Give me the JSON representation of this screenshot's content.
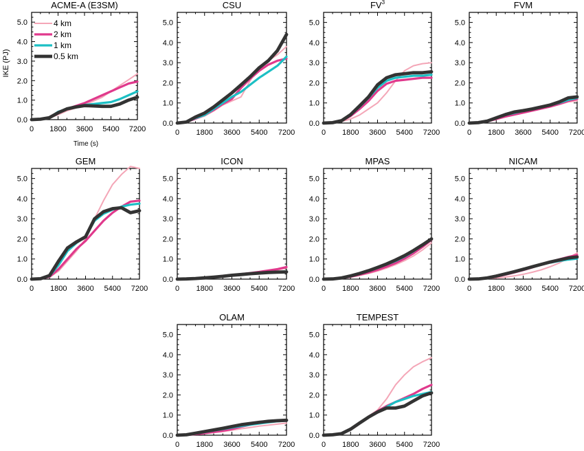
{
  "figure": {
    "ylabel": "IKE (PJ)",
    "xlabel": "Time (s)",
    "legend": {
      "placement": "top-left of first panel",
      "entries": [
        {
          "label": "4 km",
          "color": "#f4a6b7",
          "width": "thin"
        },
        {
          "label": "2 km",
          "color": "#e0398c",
          "width": "medium"
        },
        {
          "label": "1 km",
          "color": "#1cbfc4",
          "width": "medium"
        },
        {
          "label": "0.5 km",
          "color": "#333333",
          "width": "thick"
        }
      ]
    }
  },
  "chart_data": [
    {
      "type": "line",
      "title": "ACME-A (E3SM)",
      "title_sup": "",
      "xlim": [
        0,
        7200
      ],
      "ylim": [
        0,
        5.5
      ],
      "xticks": [
        "0",
        "1800",
        "3600",
        "5400",
        "7200"
      ],
      "yticks": [
        "0.0",
        "1.0",
        "2.0",
        "3.0",
        "4.0",
        "5.0"
      ],
      "xlabel": "Time (s)",
      "ylabel": "IKE (PJ)",
      "x": [
        0,
        600,
        1200,
        1800,
        2400,
        3000,
        3600,
        4200,
        4800,
        5400,
        6000,
        6600,
        7200
      ],
      "series": [
        {
          "name": "4 km",
          "values": [
            0,
            0.02,
            0.08,
            0.25,
            0.45,
            0.6,
            0.75,
            0.95,
            1.15,
            1.45,
            1.75,
            2.05,
            2.35
          ]
        },
        {
          "name": "2 km",
          "values": [
            0,
            0.02,
            0.1,
            0.35,
            0.55,
            0.7,
            0.85,
            1.05,
            1.25,
            1.45,
            1.65,
            1.85,
            1.95
          ]
        },
        {
          "name": "1 km",
          "values": [
            0,
            0.02,
            0.1,
            0.4,
            0.55,
            0.65,
            0.75,
            0.8,
            0.85,
            0.9,
            1.05,
            1.25,
            1.45
          ]
        },
        {
          "name": "0.5 km",
          "values": [
            0,
            0.02,
            0.1,
            0.35,
            0.55,
            0.65,
            0.72,
            0.7,
            0.68,
            0.68,
            0.8,
            1.0,
            1.15
          ]
        }
      ]
    },
    {
      "type": "line",
      "title": "CSU",
      "title_sup": "",
      "xlim": [
        0,
        7200
      ],
      "ylim": [
        0,
        5.5
      ],
      "xticks": [
        "0",
        "1800",
        "3600",
        "5400",
        "7200"
      ],
      "yticks": [
        "0.0",
        "1.0",
        "2.0",
        "3.0",
        "4.0",
        "5.0"
      ],
      "xlabel": "",
      "ylabel": "",
      "x": [
        0,
        600,
        1200,
        1800,
        2400,
        3000,
        3600,
        4200,
        4800,
        5400,
        6000,
        6600,
        7200
      ],
      "series": [
        {
          "name": "4 km",
          "values": [
            0,
            0.05,
            0.2,
            0.35,
            0.6,
            0.9,
            1.1,
            1.3,
            2.1,
            2.8,
            3.1,
            3.4,
            3.8
          ]
        },
        {
          "name": "2 km",
          "values": [
            0,
            0.05,
            0.22,
            0.4,
            0.65,
            0.95,
            1.2,
            1.75,
            2.2,
            2.6,
            2.9,
            3.1,
            3.2
          ]
        },
        {
          "name": "1 km",
          "values": [
            0,
            0.05,
            0.25,
            0.4,
            0.7,
            1.0,
            1.3,
            1.55,
            1.9,
            2.25,
            2.55,
            2.85,
            3.3
          ]
        },
        {
          "name": "0.5 km",
          "values": [
            0,
            0.05,
            0.3,
            0.5,
            0.8,
            1.15,
            1.5,
            1.9,
            2.3,
            2.75,
            3.1,
            3.6,
            4.4
          ]
        }
      ]
    },
    {
      "type": "line",
      "title": "FV",
      "title_sup": "3",
      "xlim": [
        0,
        7200
      ],
      "ylim": [
        0,
        5.5
      ],
      "xticks": [
        "0",
        "1800",
        "3600",
        "5400",
        "7200"
      ],
      "yticks": [
        "0.0",
        "1.0",
        "2.0",
        "3.0",
        "4.0",
        "5.0"
      ],
      "xlabel": "",
      "ylabel": "",
      "x": [
        0,
        600,
        1200,
        1800,
        2400,
        3000,
        3600,
        4200,
        4800,
        5400,
        6000,
        6600,
        7200
      ],
      "series": [
        {
          "name": "4 km",
          "values": [
            0,
            0.02,
            0.08,
            0.2,
            0.4,
            0.7,
            1.0,
            1.5,
            2.1,
            2.6,
            2.85,
            2.95,
            3.0
          ]
        },
        {
          "name": "2 km",
          "values": [
            0,
            0.02,
            0.1,
            0.35,
            0.7,
            1.1,
            1.6,
            1.95,
            2.1,
            2.15,
            2.2,
            2.25,
            2.25
          ]
        },
        {
          "name": "1 km",
          "values": [
            0,
            0.02,
            0.12,
            0.4,
            0.8,
            1.25,
            1.75,
            2.1,
            2.25,
            2.3,
            2.35,
            2.35,
            2.4
          ]
        },
        {
          "name": "0.5 km",
          "values": [
            0,
            0.02,
            0.12,
            0.42,
            0.85,
            1.3,
            1.9,
            2.25,
            2.4,
            2.45,
            2.5,
            2.5,
            2.55
          ]
        }
      ]
    },
    {
      "type": "line",
      "title": "FVM",
      "title_sup": "",
      "xlim": [
        0,
        7200
      ],
      "ylim": [
        0,
        5.5
      ],
      "xticks": [
        "0",
        "1800",
        "3600",
        "5400",
        "7200"
      ],
      "yticks": [
        "0.0",
        "1.0",
        "2.0",
        "3.0",
        "4.0",
        "5.0"
      ],
      "xlabel": "",
      "ylabel": "",
      "x": [
        0,
        600,
        1200,
        1800,
        2400,
        3000,
        3600,
        4200,
        4800,
        5400,
        6000,
        6600,
        7200
      ],
      "series": [
        {
          "name": "4 km",
          "values": [
            0,
            0.02,
            0.08,
            0.18,
            0.3,
            0.4,
            0.5,
            0.6,
            0.7,
            0.8,
            0.92,
            1.05,
            1.1
          ]
        },
        {
          "name": "2 km",
          "values": [
            0,
            0.02,
            0.08,
            0.2,
            0.32,
            0.42,
            0.52,
            0.62,
            0.72,
            0.82,
            0.95,
            1.1,
            1.2
          ]
        },
        {
          "name": "1 km",
          "values": [
            0,
            0.02,
            0.1,
            0.25,
            0.4,
            0.5,
            0.6,
            0.68,
            0.78,
            0.88,
            1.0,
            1.15,
            1.25
          ]
        },
        {
          "name": "0.5 km",
          "values": [
            0,
            0.02,
            0.1,
            0.26,
            0.42,
            0.55,
            0.62,
            0.7,
            0.8,
            0.9,
            1.05,
            1.25,
            1.3
          ]
        }
      ]
    },
    {
      "type": "line",
      "title": "GEM",
      "title_sup": "",
      "xlim": [
        0,
        7200
      ],
      "ylim": [
        0,
        5.5
      ],
      "xticks": [
        "0",
        "1800",
        "3600",
        "5400",
        "7200"
      ],
      "yticks": [
        "0.0",
        "1.0",
        "2.0",
        "3.0",
        "4.0",
        "5.0"
      ],
      "xlabel": "",
      "ylabel": "",
      "x": [
        0,
        600,
        1200,
        1800,
        2400,
        3000,
        3600,
        4200,
        4800,
        5400,
        6000,
        6600,
        7200
      ],
      "series": [
        {
          "name": "4 km",
          "values": [
            0,
            0.02,
            0.1,
            0.4,
            0.9,
            1.4,
            2.0,
            3.0,
            3.9,
            4.7,
            5.2,
            5.6,
            5.5
          ]
        },
        {
          "name": "2 km",
          "values": [
            0,
            0.02,
            0.12,
            0.5,
            1.0,
            1.5,
            1.9,
            2.4,
            2.9,
            3.3,
            3.6,
            3.85,
            3.9
          ]
        },
        {
          "name": "1 km",
          "values": [
            0,
            0.02,
            0.15,
            0.7,
            1.4,
            1.8,
            2.1,
            2.9,
            3.25,
            3.45,
            3.6,
            3.7,
            3.75
          ]
        },
        {
          "name": "0.5 km",
          "values": [
            0,
            0.02,
            0.18,
            0.9,
            1.55,
            1.85,
            2.1,
            3.0,
            3.35,
            3.5,
            3.55,
            3.3,
            3.4
          ]
        }
      ]
    },
    {
      "type": "line",
      "title": "ICON",
      "title_sup": "",
      "xlim": [
        0,
        7200
      ],
      "ylim": [
        0,
        5.5
      ],
      "xticks": [
        "0",
        "1800",
        "3600",
        "5400",
        "7200"
      ],
      "yticks": [
        "0.0",
        "1.0",
        "2.0",
        "3.0",
        "4.0",
        "5.0"
      ],
      "xlabel": "",
      "ylabel": "",
      "x": [
        0,
        600,
        1200,
        1800,
        2400,
        3000,
        3600,
        4200,
        4800,
        5400,
        6000,
        6600,
        7200
      ],
      "series": [
        {
          "name": "4 km",
          "values": [
            0,
            0.01,
            0.03,
            0.06,
            0.1,
            0.14,
            0.18,
            0.22,
            0.27,
            0.32,
            0.38,
            0.45,
            0.55
          ]
        },
        {
          "name": "2 km",
          "values": [
            0,
            0.01,
            0.03,
            0.07,
            0.11,
            0.16,
            0.2,
            0.25,
            0.3,
            0.36,
            0.43,
            0.5,
            0.6
          ]
        },
        {
          "name": "1 km",
          "values": [
            0,
            0.01,
            0.03,
            0.06,
            0.1,
            0.15,
            0.2,
            0.24,
            0.28,
            0.32,
            0.35,
            0.37,
            0.38
          ]
        },
        {
          "name": "0.5 km",
          "values": [
            0,
            0.01,
            0.03,
            0.06,
            0.1,
            0.14,
            0.19,
            0.23,
            0.27,
            0.3,
            0.33,
            0.35,
            0.36
          ]
        }
      ]
    },
    {
      "type": "line",
      "title": "MPAS",
      "title_sup": "",
      "xlim": [
        0,
        7200
      ],
      "ylim": [
        0,
        5.5
      ],
      "xticks": [
        "0",
        "1800",
        "3600",
        "5400",
        "7200"
      ],
      "yticks": [
        "0.0",
        "1.0",
        "2.0",
        "3.0",
        "4.0",
        "5.0"
      ],
      "xlabel": "",
      "ylabel": "",
      "x": [
        0,
        600,
        1200,
        1800,
        2400,
        3000,
        3600,
        4200,
        4800,
        5400,
        6000,
        6600,
        7200
      ],
      "series": [
        {
          "name": "4 km",
          "values": [
            0,
            0.01,
            0.04,
            0.1,
            0.18,
            0.28,
            0.4,
            0.55,
            0.72,
            0.92,
            1.15,
            1.45,
            1.8
          ]
        },
        {
          "name": "2 km",
          "values": [
            0,
            0.01,
            0.05,
            0.12,
            0.22,
            0.33,
            0.46,
            0.62,
            0.8,
            1.02,
            1.28,
            1.6,
            1.95
          ]
        },
        {
          "name": "1 km",
          "values": [
            0,
            0.01,
            0.06,
            0.15,
            0.27,
            0.4,
            0.55,
            0.72,
            0.9,
            1.12,
            1.38,
            1.68,
            2.0
          ]
        },
        {
          "name": "0.5 km",
          "values": [
            0,
            0.01,
            0.06,
            0.16,
            0.28,
            0.42,
            0.58,
            0.75,
            0.95,
            1.17,
            1.42,
            1.7,
            2.0
          ]
        }
      ]
    },
    {
      "type": "line",
      "title": "NICAM",
      "title_sup": "",
      "xlim": [
        0,
        7200
      ],
      "ylim": [
        0,
        5.5
      ],
      "xticks": [
        "0",
        "1800",
        "3600",
        "5400",
        "7200"
      ],
      "yticks": [
        "0.0",
        "1.0",
        "2.0",
        "3.0",
        "4.0",
        "5.0"
      ],
      "xlabel": "",
      "ylabel": "",
      "x": [
        0,
        600,
        1200,
        1800,
        2400,
        3000,
        3600,
        4200,
        4800,
        5400,
        6000,
        6600,
        7200
      ],
      "series": [
        {
          "name": "4 km",
          "values": [
            0,
            0.01,
            0.03,
            0.06,
            0.1,
            0.16,
            0.24,
            0.34,
            0.46,
            0.62,
            0.8,
            1.05,
            1.3
          ]
        },
        {
          "name": "2 km",
          "values": [
            0,
            0.01,
            0.05,
            0.12,
            0.22,
            0.33,
            0.45,
            0.58,
            0.72,
            0.86,
            0.98,
            1.1,
            1.2
          ]
        },
        {
          "name": "1 km",
          "values": [
            0,
            0.01,
            0.06,
            0.15,
            0.25,
            0.36,
            0.48,
            0.6,
            0.72,
            0.82,
            0.9,
            0.97,
            1.02
          ]
        },
        {
          "name": "0.5 km",
          "values": [
            0,
            0.01,
            0.06,
            0.15,
            0.26,
            0.37,
            0.49,
            0.61,
            0.73,
            0.85,
            0.95,
            1.05,
            1.1
          ]
        }
      ]
    },
    {
      "type": "line",
      "title": "OLAM",
      "title_sup": "",
      "xlim": [
        0,
        7200
      ],
      "ylim": [
        0,
        5.5
      ],
      "xticks": [
        "0",
        "1800",
        "3600",
        "5400",
        "7200"
      ],
      "yticks": [
        "0.0",
        "1.0",
        "2.0",
        "3.0",
        "4.0",
        "5.0"
      ],
      "xlabel": "",
      "ylabel": "",
      "x": [
        0,
        600,
        1200,
        1800,
        2400,
        3000,
        3600,
        4200,
        4800,
        5400,
        6000,
        6600,
        7200
      ],
      "series": [
        {
          "name": "4 km",
          "values": [
            0,
            0.01,
            0.04,
            0.08,
            0.13,
            0.18,
            0.25,
            0.32,
            0.38,
            0.45,
            0.5,
            0.55,
            0.6
          ]
        },
        {
          "name": "2 km",
          "values": [
            0,
            0.01,
            0.05,
            0.1,
            0.16,
            0.22,
            0.3,
            0.42,
            0.52,
            0.6,
            0.67,
            0.72,
            0.75
          ]
        },
        {
          "name": "1 km",
          "values": [
            0,
            0.02,
            0.08,
            0.15,
            0.23,
            0.3,
            0.38,
            0.45,
            0.52,
            0.58,
            0.64,
            0.69,
            0.72
          ]
        },
        {
          "name": "0.5 km",
          "values": [
            0,
            0.02,
            0.1,
            0.18,
            0.26,
            0.34,
            0.43,
            0.52,
            0.58,
            0.64,
            0.69,
            0.72,
            0.74
          ]
        }
      ]
    },
    {
      "type": "line",
      "title": "TEMPEST",
      "title_sup": "",
      "xlim": [
        0,
        7200
      ],
      "ylim": [
        0,
        5.5
      ],
      "xticks": [
        "0",
        "1800",
        "3600",
        "5400",
        "7200"
      ],
      "yticks": [
        "0.0",
        "1.0",
        "2.0",
        "3.0",
        "4.0",
        "5.0"
      ],
      "xlabel": "",
      "ylabel": "",
      "x": [
        0,
        600,
        1200,
        1800,
        2400,
        3000,
        3600,
        4200,
        4800,
        5400,
        6000,
        6600,
        7200
      ],
      "series": [
        {
          "name": "4 km",
          "values": [
            0,
            0.02,
            0.08,
            0.25,
            0.55,
            0.95,
            1.25,
            1.8,
            2.5,
            3.0,
            3.4,
            3.65,
            3.85
          ]
        },
        {
          "name": "2 km",
          "values": [
            0,
            0.02,
            0.08,
            0.3,
            0.6,
            0.9,
            1.2,
            1.45,
            1.65,
            1.85,
            2.05,
            2.3,
            2.5
          ]
        },
        {
          "name": "1 km",
          "values": [
            0,
            0.02,
            0.08,
            0.3,
            0.6,
            0.9,
            1.15,
            1.4,
            1.65,
            1.8,
            1.95,
            2.05,
            2.15
          ]
        },
        {
          "name": "0.5 km",
          "values": [
            0,
            0.02,
            0.08,
            0.3,
            0.6,
            0.9,
            1.15,
            1.35,
            1.35,
            1.45,
            1.7,
            1.95,
            2.1
          ]
        }
      ]
    }
  ]
}
